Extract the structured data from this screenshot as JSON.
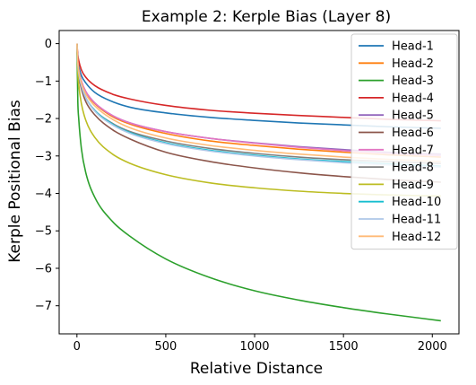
{
  "chart_data": {
    "type": "line",
    "title": "Example 2: Kerple Bias (Layer 8)",
    "xlabel": "Relative Distance",
    "ylabel": "Kerple Positional Bias",
    "xlim": [
      -100,
      2150
    ],
    "ylim": [
      -7.75,
      0.35
    ],
    "xticks": [
      0,
      500,
      1000,
      1500,
      2000
    ],
    "xtick_labels": [
      "0",
      "500",
      "1000",
      "1500",
      "2000"
    ],
    "yticks": [
      0,
      -1,
      -2,
      -3,
      -4,
      -5,
      -6,
      -7
    ],
    "ytick_labels": [
      "0",
      "−1",
      "−2",
      "−3",
      "−4",
      "−5",
      "−6",
      "−7"
    ],
    "grid": false,
    "legend_position": "top-right",
    "x": [
      0,
      5,
      10,
      25,
      50,
      100,
      200,
      300,
      500,
      750,
      1000,
      1250,
      1500,
      1750,
      2048
    ],
    "series": [
      {
        "name": "Head-1",
        "color": "#1f77b4",
        "values": [
          0,
          -0.45,
          -0.6,
          -0.85,
          -1.05,
          -1.3,
          -1.55,
          -1.7,
          -1.85,
          -1.97,
          -2.05,
          -2.12,
          -2.17,
          -2.22,
          -2.26
        ]
      },
      {
        "name": "Head-2",
        "color": "#ff7f0e",
        "values": [
          0,
          -0.5,
          -0.7,
          -1.0,
          -1.3,
          -1.6,
          -1.95,
          -2.15,
          -2.4,
          -2.6,
          -2.72,
          -2.82,
          -2.9,
          -2.97,
          -3.03
        ]
      },
      {
        "name": "Head-3",
        "color": "#2ca02c",
        "values": [
          0,
          -1.55,
          -2.0,
          -2.8,
          -3.45,
          -4.1,
          -4.75,
          -5.15,
          -5.75,
          -6.25,
          -6.6,
          -6.85,
          -7.05,
          -7.22,
          -7.4
        ]
      },
      {
        "name": "Head-4",
        "color": "#d62728",
        "values": [
          0,
          -0.3,
          -0.45,
          -0.7,
          -0.9,
          -1.12,
          -1.35,
          -1.48,
          -1.65,
          -1.78,
          -1.86,
          -1.92,
          -1.97,
          -2.02,
          -2.06
        ]
      },
      {
        "name": "Head-5",
        "color": "#9467bd",
        "values": [
          0,
          -0.5,
          -0.7,
          -1.0,
          -1.28,
          -1.58,
          -1.92,
          -2.12,
          -2.35,
          -2.53,
          -2.65,
          -2.75,
          -2.83,
          -2.9,
          -2.95
        ]
      },
      {
        "name": "Head-6",
        "color": "#8c564b",
        "values": [
          0,
          -0.6,
          -0.85,
          -1.2,
          -1.55,
          -1.9,
          -2.3,
          -2.55,
          -2.9,
          -3.15,
          -3.32,
          -3.45,
          -3.55,
          -3.63,
          -3.7
        ]
      },
      {
        "name": "Head-7",
        "color": "#e377c2",
        "values": [
          0,
          -0.5,
          -0.7,
          -1.0,
          -1.28,
          -1.58,
          -1.92,
          -2.12,
          -2.35,
          -2.53,
          -2.66,
          -2.77,
          -2.86,
          -2.93,
          -2.99
        ]
      },
      {
        "name": "Head-8",
        "color": "#7f7f7f",
        "values": [
          0,
          -0.55,
          -0.78,
          -1.12,
          -1.45,
          -1.78,
          -2.13,
          -2.35,
          -2.6,
          -2.8,
          -2.93,
          -3.03,
          -3.1,
          -3.15,
          -3.2
        ]
      },
      {
        "name": "Head-9",
        "color": "#bcbd22",
        "values": [
          0,
          -0.8,
          -1.1,
          -1.6,
          -2.05,
          -2.5,
          -2.95,
          -3.2,
          -3.5,
          -3.72,
          -3.85,
          -3.94,
          -4.0,
          -4.04,
          -4.07
        ]
      },
      {
        "name": "Head-10",
        "color": "#17becf",
        "values": [
          0,
          -0.55,
          -0.78,
          -1.12,
          -1.45,
          -1.78,
          -2.15,
          -2.38,
          -2.65,
          -2.85,
          -2.98,
          -3.08,
          -3.15,
          -3.21,
          -3.27
        ]
      },
      {
        "name": "Head-11",
        "color": "#aec7e8",
        "values": [
          0,
          -0.55,
          -0.78,
          -1.12,
          -1.45,
          -1.8,
          -2.17,
          -2.4,
          -2.67,
          -2.87,
          -3.0,
          -3.1,
          -3.18,
          -3.24,
          -3.3
        ]
      },
      {
        "name": "Head-12",
        "color": "#ffbb78",
        "values": [
          0,
          -0.5,
          -0.72,
          -1.05,
          -1.35,
          -1.66,
          -2.02,
          -2.25,
          -2.52,
          -2.72,
          -2.85,
          -2.95,
          -3.03,
          -3.09,
          -3.15
        ]
      }
    ]
  }
}
